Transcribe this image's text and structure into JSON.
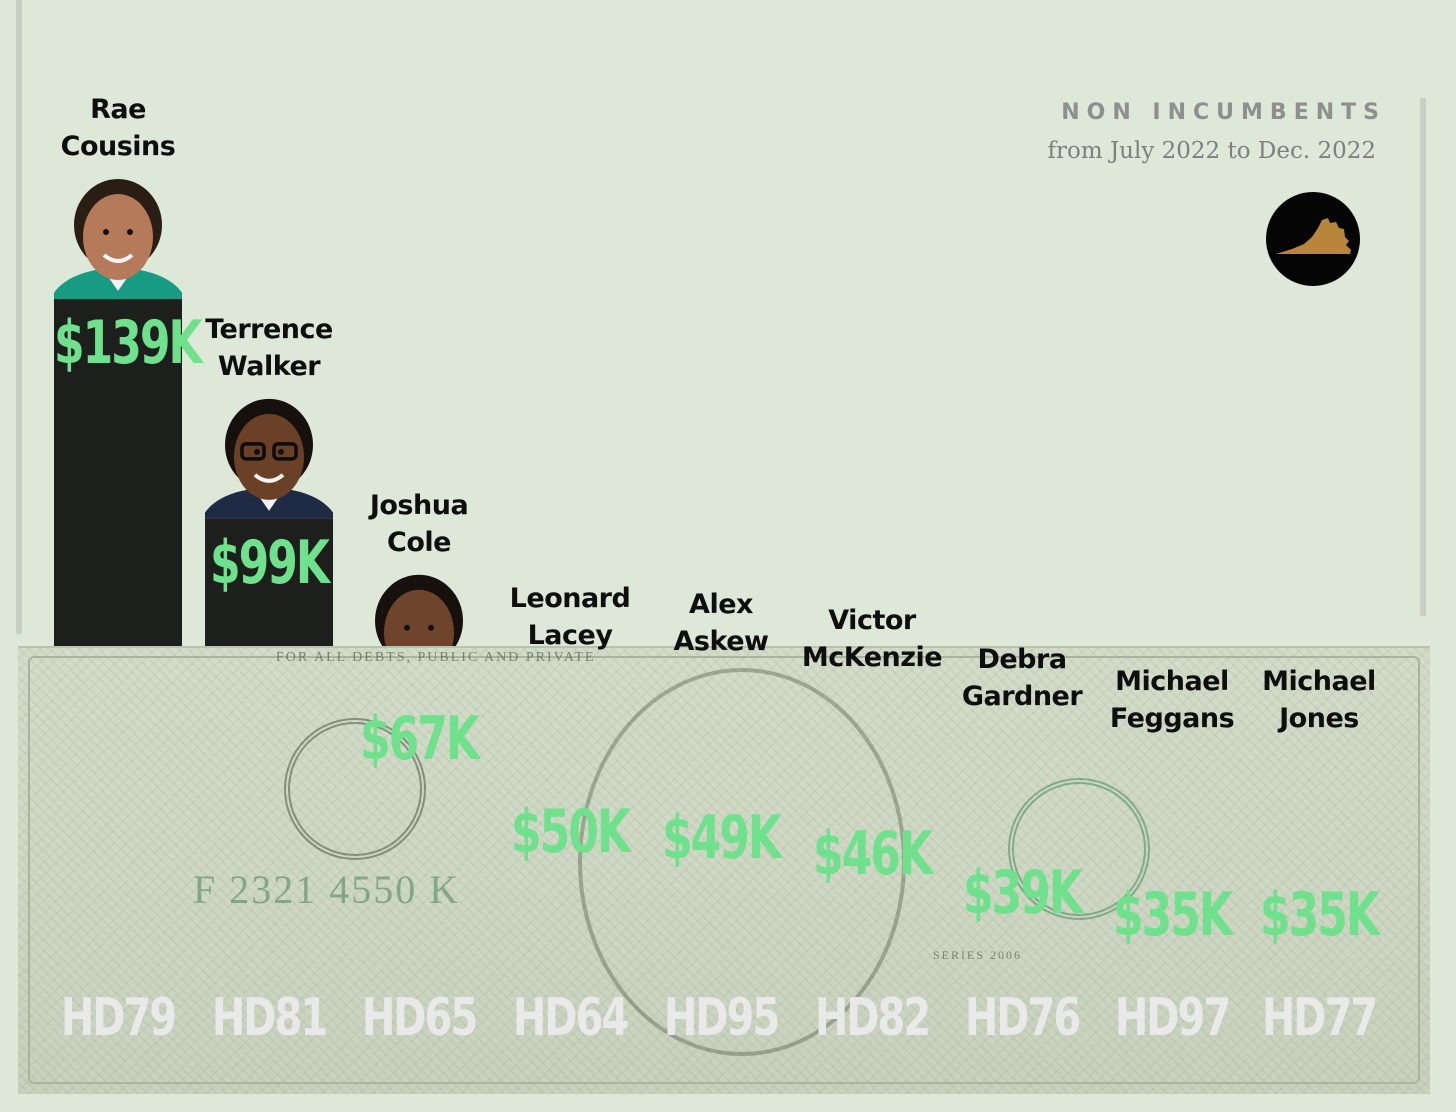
{
  "title": "NON INCUMBENTS",
  "subtitle": "from July 2022 to Dec. 2022",
  "logo": {
    "icon": "virginia-state-icon",
    "fill": "#b7863a",
    "background": "#050505"
  },
  "colors": {
    "background": "#dde8d8",
    "bar": "#1d1f1c",
    "value": "#6fe08c",
    "district": "#e9e9e9",
    "name": "#0e0e0e"
  },
  "chart_data": {
    "type": "bar",
    "title": "NON INCUMBENTS",
    "subtitle": "from July 2022 to Dec. 2022",
    "xlabel": "",
    "ylabel": "",
    "ylim": [
      0,
      139
    ],
    "grid": false,
    "categories": [
      "HD79",
      "HD81",
      "HD65",
      "HD64",
      "HD95",
      "HD82",
      "HD76",
      "HD97",
      "HD77"
    ],
    "values": [
      139,
      99,
      67,
      50,
      49,
      46,
      39,
      35,
      35
    ],
    "value_labels": [
      "$139K",
      "$99K",
      "$67K",
      "$50K",
      "$49K",
      "$46K",
      "$39K",
      "$35K",
      "$35K"
    ],
    "candidates": [
      [
        "Rae",
        "Cousins"
      ],
      [
        "Terrence",
        "Walker"
      ],
      [
        "Joshua",
        "Cole"
      ],
      [
        "Leonard",
        "Lacey"
      ],
      [
        "Alex",
        "Askew"
      ],
      [
        "Victor",
        "McKenzie"
      ],
      [
        "Debra",
        "Gardner"
      ],
      [
        "Michael",
        "Feggans"
      ],
      [
        "Michael",
        "Jones"
      ]
    ],
    "portraits": [
      {
        "skin": "#b57a5a",
        "hair": "#2a1d14",
        "attire": "#179c83",
        "glasses": false
      },
      {
        "skin": "#6a4027",
        "hair": "#16110d",
        "attire": "#1f2a44",
        "glasses": true
      },
      {
        "skin": "#6e442c",
        "hair": "#17110d",
        "attire": "#1c2233",
        "glasses": false
      },
      {
        "skin": "#7d5238",
        "hair": "#8c8478",
        "attire": "#23252a",
        "glasses": true
      },
      {
        "skin": "#5a3826",
        "hair": "#231a14",
        "attire": "#1d2a4a",
        "glasses": true
      },
      {
        "skin": "#5c3a26",
        "hair": "#15100c",
        "attire": "#1f4a9e",
        "glasses": false
      },
      {
        "skin": "#5e3926",
        "hair": "#1a1310",
        "attire": "#f4f4f4",
        "glasses": false
      },
      {
        "skin": "#b98a66",
        "hair": "#3a2a1f",
        "attire": "#2a3550",
        "glasses": false
      },
      {
        "skin": "#6a4530",
        "hair": "#6a4530",
        "attire": "#1e2740",
        "glasses": false
      }
    ]
  }
}
